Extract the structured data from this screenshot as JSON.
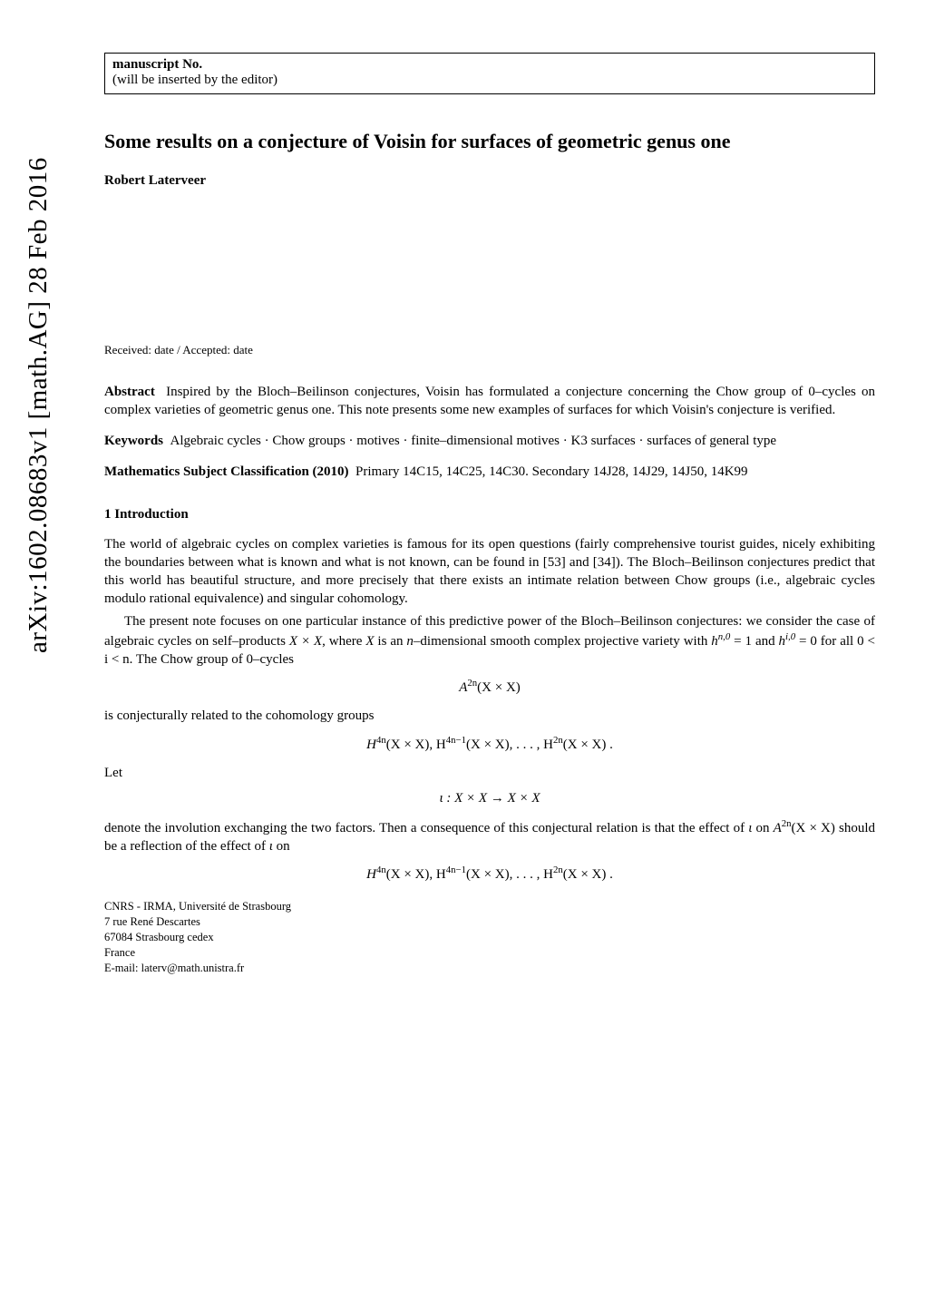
{
  "arxiv_id": "arXiv:1602.08683v1  [math.AG]  28 Feb 2016",
  "manuscript_box": {
    "line1": "manuscript No.",
    "line2": "(will be inserted by the editor)"
  },
  "title": "Some results on a conjecture of Voisin for surfaces of geometric genus one",
  "author": "Robert Laterveer",
  "dates": "Received: date / Accepted: date",
  "abstract": {
    "label": "Abstract",
    "text": "Inspired by the Bloch–Beilinson conjectures, Voisin has formulated a conjecture concerning the Chow group of 0–cycles on complex varieties of geometric genus one. This note presents some new examples of surfaces for which Voisin's conjecture is verified."
  },
  "keywords": {
    "label": "Keywords",
    "text": "Algebraic cycles · Chow groups · motives · finite–dimensional motives · K3 surfaces · surfaces of general type"
  },
  "msc": {
    "label": "Mathematics Subject Classification (2010)",
    "text": "Primary 14C15, 14C25, 14C30. Secondary 14J28, 14J29, 14J50, 14K99"
  },
  "section1_heading": "1 Introduction",
  "para1": "The world of algebraic cycles on complex varieties is famous for its open questions (fairly comprehensive tourist guides, nicely exhibiting the boundaries between what is known and what is not known, can be found in [53] and [34]). The Bloch–Beilinson conjectures predict that this world has beautiful structure, and more precisely that there exists an intimate relation between Chow groups (i.e., algebraic cycles modulo rational equivalence) and singular cohomology.",
  "para2_a": "The present note focuses on one particular instance of this predictive power of the Bloch–Beilinson conjectures: we consider the case of algebraic cycles on self–products ",
  "para2_b": ", where ",
  "para2_c": " is an ",
  "para2_d": "–dimensional smooth complex projective variety with ",
  "para2_e": " and ",
  "para2_f": " for all ",
  "para2_g": ". The Chow group of 0–cycles",
  "para3": "is conjecturally related to the cohomology groups",
  "let_text": "Let",
  "para4_a": "denote the involution exchanging the two factors. Then a consequence of this conjectural relation is that the effect of ",
  "para4_b": " on ",
  "para4_c": " should be a reflection of the effect of ",
  "para4_d": " on",
  "math": {
    "XxX": "X × X",
    "X": "X",
    "n": "n",
    "hn0": "h",
    "hn0_sup": "n,0",
    "eq1": " = 1",
    "hi0": "h",
    "hi0_sup": "i,0",
    "eq0": " = 0",
    "range": "0 < i < n",
    "A2n_pre": "A",
    "A2n_sup": "2n",
    "A2n_post": "(X × X)",
    "Hlist1_a": "H",
    "Hlist1_a_sup": "4n",
    "Hlist1_a_post": "(X × X), H",
    "Hlist1_b_sup": "4n−1",
    "Hlist1_b_post": "(X × X), . . . , H",
    "Hlist1_c_sup": "2n",
    "Hlist1_c_post": "(X × X) .",
    "iota_map": "ι :   X × X  →  X × X",
    "iota": "ι",
    "A2nXX_pre": "A",
    "A2nXX_sup": "2n",
    "A2nXX_post": "(X × X)"
  },
  "affiliation": {
    "line1": "CNRS - IRMA, Université de Strasbourg",
    "line2": "7 rue René Descartes",
    "line3": "67084 Strasbourg cedex",
    "line4": "France",
    "line5": "E-mail: laterv@math.unistra.fr"
  }
}
